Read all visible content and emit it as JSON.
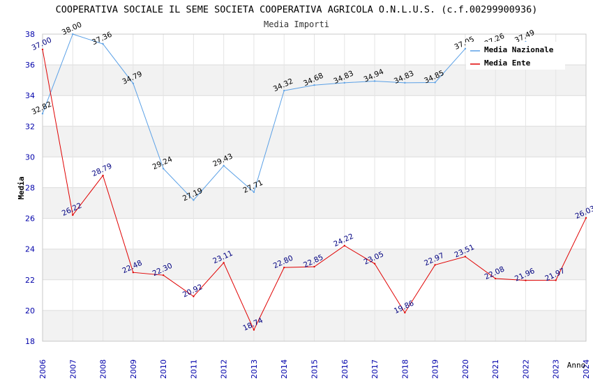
{
  "chart_data": {
    "type": "line",
    "title": "COOPERATIVA SOCIALE IL SEME SOCIETA COOPERATIVA AGRICOLA O.N.L.U.S. (c.f.00299900936)",
    "subtitle": "Media Importi",
    "xlabel": "Anno",
    "ylabel": "Media",
    "ylim": [
      18,
      38
    ],
    "yticks": [
      18,
      20,
      22,
      24,
      26,
      28,
      30,
      32,
      34,
      36,
      38
    ],
    "categories": [
      "2006",
      "2007",
      "2008",
      "2009",
      "2010",
      "2011",
      "2012",
      "2013",
      "2014",
      "2015",
      "2016",
      "2017",
      "2018",
      "2019",
      "2020",
      "2021",
      "2022",
      "2023",
      "2024"
    ],
    "legend_position": "top-right",
    "series": [
      {
        "name": "Media Nazionale",
        "color": "#5aa0e6",
        "label_color": "#000000",
        "values": [
          32.82,
          38.0,
          37.36,
          34.79,
          29.24,
          27.19,
          29.43,
          27.71,
          34.32,
          34.68,
          34.83,
          34.94,
          34.83,
          34.85,
          37.05,
          37.26,
          37.49,
          null,
          null
        ],
        "labels": [
          "32.82",
          "38.00",
          "37.36",
          "34.79",
          "29.24",
          "27.19",
          "29.43",
          "27.71",
          "34.32",
          "34.68",
          "34.83",
          "34.94",
          "34.83",
          "34.85",
          "37.05",
          "37.26",
          "37.49",
          "",
          ""
        ]
      },
      {
        "name": "Media Ente",
        "color": "#e00000",
        "label_color": "#000080",
        "values": [
          37.0,
          26.22,
          28.79,
          22.48,
          22.3,
          20.92,
          23.11,
          18.74,
          22.8,
          22.85,
          24.22,
          23.05,
          19.86,
          22.97,
          23.51,
          22.08,
          21.96,
          21.97,
          26.03
        ],
        "labels": [
          "37.00",
          "26.22",
          "28.79",
          "22.48",
          "22.30",
          "20.92",
          "23.11",
          "18.74",
          "22.80",
          "22.85",
          "24.22",
          "23.05",
          "19.86",
          "22.97",
          "23.51",
          "22.08",
          "21.96",
          "21.97",
          "26.03"
        ]
      }
    ]
  }
}
